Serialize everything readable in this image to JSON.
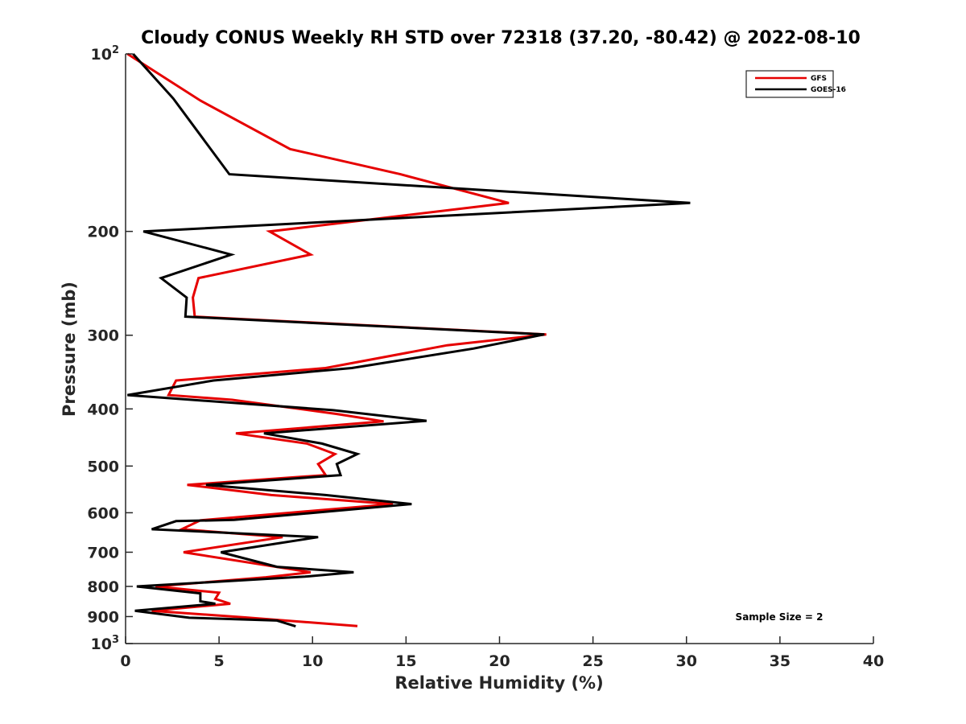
{
  "chart_data": {
    "type": "line",
    "title": "Cloudy CONUS Weekly RH STD over 72318 (37.20, -80.42) @ 2022-08-10",
    "xlabel": "Relative Humidity (%)",
    "ylabel": "Pressure (mb)",
    "xlim": [
      0,
      40
    ],
    "ylim": [
      100,
      1000
    ],
    "yscale": "log",
    "yreversed": true,
    "grid": false,
    "legend_position": "top-right",
    "xticks": [
      0,
      5,
      10,
      15,
      20,
      25,
      30,
      35,
      40
    ],
    "xtick_labels": [
      "0",
      "5",
      "10",
      "15",
      "20",
      "25",
      "30",
      "35",
      "40"
    ],
    "yticks": [
      100,
      200,
      300,
      400,
      500,
      600,
      700,
      800,
      900,
      1000
    ],
    "ytick_labels": [
      {
        "base": "10",
        "sup": "2"
      },
      {
        "base": "200",
        "sup": ""
      },
      {
        "base": "300",
        "sup": ""
      },
      {
        "base": "400",
        "sup": ""
      },
      {
        "base": "500",
        "sup": ""
      },
      {
        "base": "600",
        "sup": ""
      },
      {
        "base": "700",
        "sup": ""
      },
      {
        "base": "800",
        "sup": ""
      },
      {
        "base": "900",
        "sup": ""
      },
      {
        "base": "10",
        "sup": "3"
      }
    ],
    "annotation": "Sample Size = 2",
    "series": [
      {
        "name": "GFS",
        "color": "#e60000",
        "rh": [
          0.1,
          4.0,
          8.8,
          14.7,
          20.5,
          7.7,
          9.9,
          3.9,
          3.6,
          3.7,
          22.5,
          17.2,
          10.7,
          2.7,
          2.3,
          5.7,
          11.3,
          13.8,
          5.9,
          9.7,
          11.2,
          10.3,
          10.7,
          3.3,
          7.8,
          14.3,
          4.0,
          3.0,
          8.4,
          3.1,
          9.9,
          7.5,
          1.6,
          5.0,
          4.8,
          5.6,
          1.4,
          6.4,
          12.4
        ],
        "pressure": [
          100,
          120,
          145,
          160,
          179,
          200,
          219,
          240,
          259,
          279,
          299,
          312,
          341,
          358,
          379,
          386,
          408,
          420,
          440,
          458,
          477,
          496,
          518,
          538,
          560,
          580,
          618,
          640,
          660,
          700,
          757,
          772,
          800,
          820,
          840,
          856,
          880,
          903,
          934
        ]
      },
      {
        "name": "GOES-16",
        "color": "#000000",
        "rh": [
          0.4,
          2.55,
          5.55,
          30.2,
          0.95,
          5.65,
          1.9,
          3.27,
          3.2,
          22.4,
          18.6,
          12.1,
          4.7,
          0.1,
          11.1,
          16.1,
          7.4,
          10.5,
          12.4,
          11.3,
          11.5,
          4.3,
          10.7,
          15.3,
          5.8,
          2.7,
          1.4,
          10.3,
          5.1,
          8.1,
          12.2,
          9.6,
          0.6,
          4.0,
          4.0,
          4.8,
          0.5,
          3.4,
          8.1,
          9.1
        ],
        "pressure": [
          100,
          119,
          160,
          179,
          200,
          219,
          240,
          259,
          279,
          299,
          316,
          341,
          358,
          379,
          402,
          419,
          440,
          458,
          477,
          496,
          518,
          538,
          560,
          580,
          617,
          620,
          640,
          660,
          700,
          741,
          757,
          770,
          800,
          822,
          848,
          856,
          880,
          904,
          914,
          935
        ]
      }
    ]
  }
}
